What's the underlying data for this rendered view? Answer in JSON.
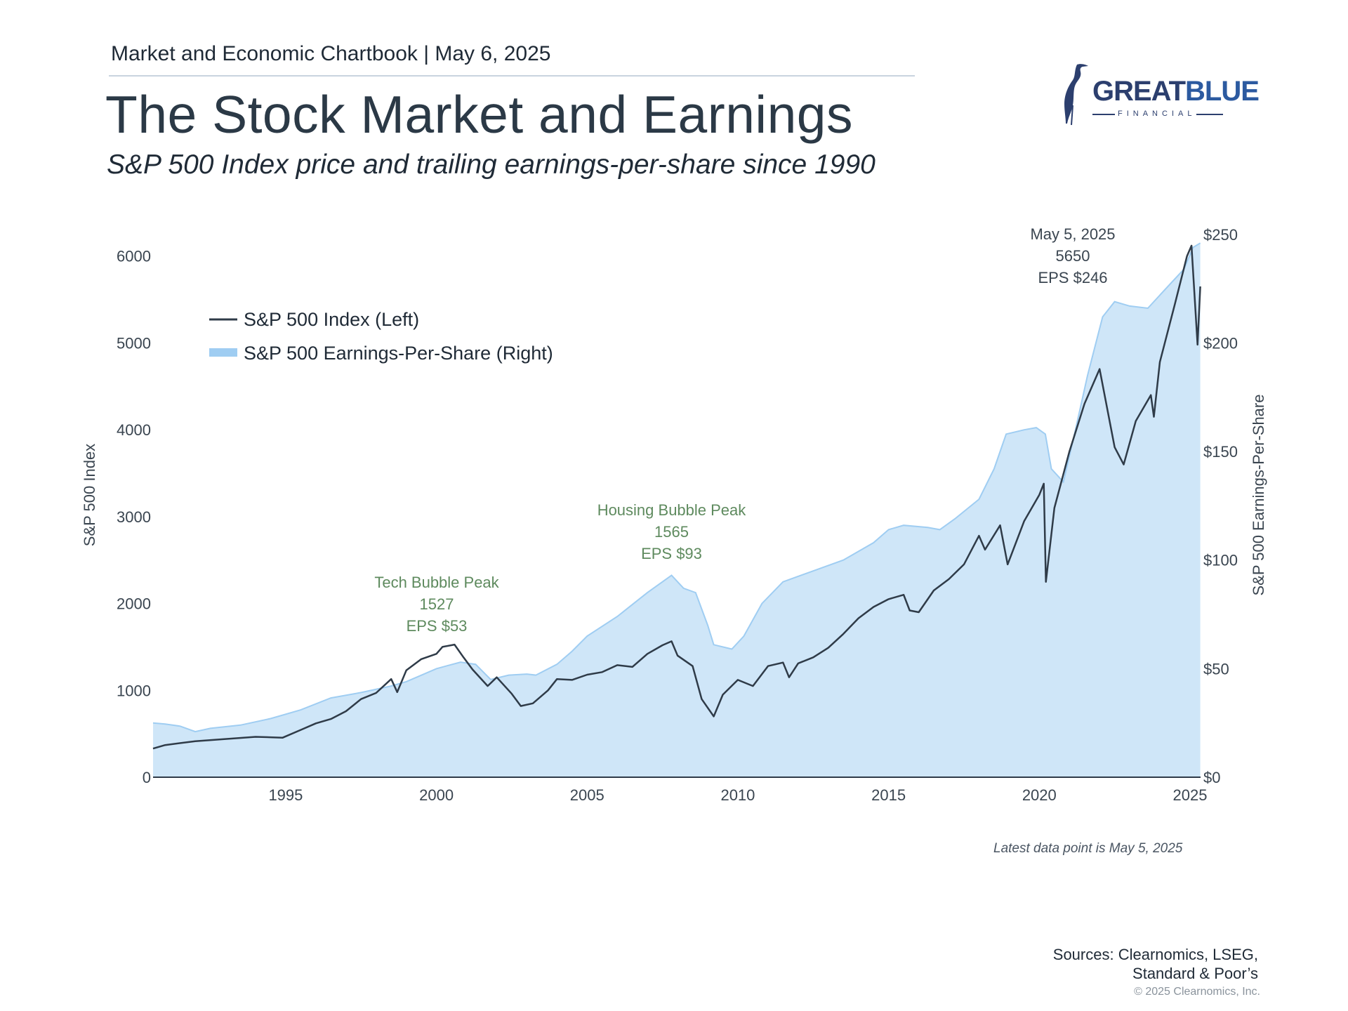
{
  "header": {
    "chartbook": "Market and Economic Chartbook | May 6, 2025",
    "title": "The Stock Market and Earnings",
    "subtitle": "S&P 500 Index price and trailing earnings-per-share since 1990"
  },
  "logo": {
    "word1": "GREAT",
    "word2": "BLUE",
    "sub": "FINANCIAL"
  },
  "footer": {
    "latest": "Latest data point is May 5, 2025",
    "sources": "Sources: Clearnomics, LSEG,\nStandard & Poor’s",
    "copyright": "© 2025 Clearnomics, Inc."
  },
  "colors": {
    "index_line": "#2f3b48",
    "eps_fill": "#cfe6f8",
    "eps_line": "#9fcdf2",
    "annotation_green": "#5e8a5e",
    "axis_text": "#3a4550"
  },
  "chart_data": {
    "type": "line",
    "xlabel": "",
    "ylabel": "S&P 500 Index",
    "y2label": "S&P 500 Earnings-Per-Share",
    "xlim": [
      1990.6,
      2025.35
    ],
    "ylim": [
      0,
      6200
    ],
    "y2lim": [
      0,
      248
    ],
    "x_ticks": [
      1995,
      2000,
      2005,
      2010,
      2015,
      2020,
      2025
    ],
    "y_ticks": [
      0,
      1000,
      2000,
      3000,
      4000,
      5000,
      6000
    ],
    "y2_ticks": [
      {
        "value": 0,
        "label": "$0"
      },
      {
        "value": 50,
        "label": "$50"
      },
      {
        "value": 100,
        "label": "$100"
      },
      {
        "value": 150,
        "label": "$150"
      },
      {
        "value": 200,
        "label": "$200"
      },
      {
        "value": 250,
        "label": "$250"
      }
    ],
    "legend": [
      "S&P 500 Index (Left)",
      "S&P 500 Earnings-Per-Share (Right)"
    ],
    "legend_position": "top-left",
    "grid": false,
    "series": [
      {
        "name": "S&P 500 Index (Left)",
        "axis": "left",
        "style": "line",
        "points": [
          [
            1990.6,
            330
          ],
          [
            1991,
            370
          ],
          [
            1992,
            415
          ],
          [
            1993,
            440
          ],
          [
            1994,
            465
          ],
          [
            1994.9,
            455
          ],
          [
            1995.5,
            545
          ],
          [
            1996,
            620
          ],
          [
            1996.5,
            670
          ],
          [
            1997,
            760
          ],
          [
            1997.5,
            900
          ],
          [
            1998,
            970
          ],
          [
            1998.5,
            1130
          ],
          [
            1998.7,
            980
          ],
          [
            1999,
            1230
          ],
          [
            1999.5,
            1360
          ],
          [
            2000,
            1420
          ],
          [
            2000.2,
            1500
          ],
          [
            2000.6,
            1527
          ],
          [
            2000.9,
            1380
          ],
          [
            2001.2,
            1240
          ],
          [
            2001.7,
            1050
          ],
          [
            2002,
            1150
          ],
          [
            2002.5,
            960
          ],
          [
            2002.8,
            820
          ],
          [
            2003.2,
            850
          ],
          [
            2003.7,
            1000
          ],
          [
            2004,
            1130
          ],
          [
            2004.5,
            1120
          ],
          [
            2005,
            1180
          ],
          [
            2005.5,
            1210
          ],
          [
            2006,
            1290
          ],
          [
            2006.5,
            1270
          ],
          [
            2007,
            1420
          ],
          [
            2007.5,
            1520
          ],
          [
            2007.8,
            1565
          ],
          [
            2008,
            1400
          ],
          [
            2008.5,
            1280
          ],
          [
            2008.8,
            900
          ],
          [
            2009.2,
            700
          ],
          [
            2009.5,
            950
          ],
          [
            2010,
            1120
          ],
          [
            2010.5,
            1050
          ],
          [
            2011,
            1280
          ],
          [
            2011.5,
            1320
          ],
          [
            2011.7,
            1150
          ],
          [
            2012,
            1310
          ],
          [
            2012.5,
            1380
          ],
          [
            2013,
            1490
          ],
          [
            2013.5,
            1650
          ],
          [
            2014,
            1830
          ],
          [
            2014.5,
            1960
          ],
          [
            2015,
            2050
          ],
          [
            2015.5,
            2100
          ],
          [
            2015.7,
            1920
          ],
          [
            2016,
            1900
          ],
          [
            2016.5,
            2150
          ],
          [
            2017,
            2280
          ],
          [
            2017.5,
            2450
          ],
          [
            2018,
            2780
          ],
          [
            2018.2,
            2620
          ],
          [
            2018.7,
            2900
          ],
          [
            2018.95,
            2450
          ],
          [
            2019.5,
            2950
          ],
          [
            2020,
            3250
          ],
          [
            2020.15,
            3380
          ],
          [
            2020.22,
            2250
          ],
          [
            2020.5,
            3100
          ],
          [
            2021,
            3750
          ],
          [
            2021.5,
            4300
          ],
          [
            2022,
            4700
          ],
          [
            2022.5,
            3800
          ],
          [
            2022.8,
            3600
          ],
          [
            2023.2,
            4100
          ],
          [
            2023.7,
            4400
          ],
          [
            2023.8,
            4150
          ],
          [
            2024,
            4780
          ],
          [
            2024.5,
            5450
          ],
          [
            2024.9,
            6000
          ],
          [
            2025.05,
            6120
          ],
          [
            2025.25,
            4980
          ],
          [
            2025.34,
            5650
          ]
        ]
      },
      {
        "name": "S&P 500 Earnings-Per-Share (Right)",
        "axis": "right",
        "style": "area",
        "points": [
          [
            1990.6,
            25
          ],
          [
            1991,
            24.5
          ],
          [
            1991.5,
            23.5
          ],
          [
            1992,
            21
          ],
          [
            1992.5,
            22.5
          ],
          [
            1993.5,
            24
          ],
          [
            1994.5,
            27
          ],
          [
            1995.5,
            31
          ],
          [
            1996.5,
            36.5
          ],
          [
            1997.5,
            39
          ],
          [
            1998.5,
            42
          ],
          [
            1999,
            44
          ],
          [
            2000,
            50
          ],
          [
            2000.8,
            53
          ],
          [
            2001.3,
            52
          ],
          [
            2001.8,
            45
          ],
          [
            2002.4,
            47
          ],
          [
            2003,
            47.5
          ],
          [
            2003.3,
            47
          ],
          [
            2004,
            52
          ],
          [
            2004.5,
            58
          ],
          [
            2005,
            65
          ],
          [
            2006,
            74
          ],
          [
            2007,
            85
          ],
          [
            2007.8,
            93
          ],
          [
            2008.2,
            87
          ],
          [
            2008.6,
            85
          ],
          [
            2009,
            70
          ],
          [
            2009.2,
            61
          ],
          [
            2009.8,
            59
          ],
          [
            2010.2,
            65
          ],
          [
            2010.8,
            80
          ],
          [
            2011.5,
            90
          ],
          [
            2012.5,
            95
          ],
          [
            2013.5,
            100
          ],
          [
            2014.5,
            108
          ],
          [
            2015,
            114
          ],
          [
            2015.5,
            116
          ],
          [
            2016.3,
            115
          ],
          [
            2016.7,
            114
          ],
          [
            2017.2,
            119
          ],
          [
            2018,
            128
          ],
          [
            2018.5,
            142
          ],
          [
            2018.9,
            158
          ],
          [
            2019.5,
            160
          ],
          [
            2019.9,
            161
          ],
          [
            2020.2,
            158
          ],
          [
            2020.4,
            142
          ],
          [
            2020.8,
            136
          ],
          [
            2021.2,
            160
          ],
          [
            2021.6,
            185
          ],
          [
            2022.1,
            212
          ],
          [
            2022.5,
            219
          ],
          [
            2023,
            217
          ],
          [
            2023.6,
            216
          ],
          [
            2024.2,
            225
          ],
          [
            2024.8,
            234
          ],
          [
            2025.1,
            244
          ],
          [
            2025.34,
            246
          ]
        ]
      }
    ],
    "annotations": [
      {
        "lines": [
          "Tech Bubble Peak",
          "1527",
          "EPS $53"
        ],
        "x": 2000.6,
        "style": "green"
      },
      {
        "lines": [
          "Housing Bubble Peak",
          "1565",
          "EPS $93"
        ],
        "x": 2007.8,
        "style": "green"
      },
      {
        "lines": [
          "May 5, 2025",
          "5650",
          "EPS $246"
        ],
        "x": 2025.34,
        "style": "dark"
      }
    ]
  }
}
